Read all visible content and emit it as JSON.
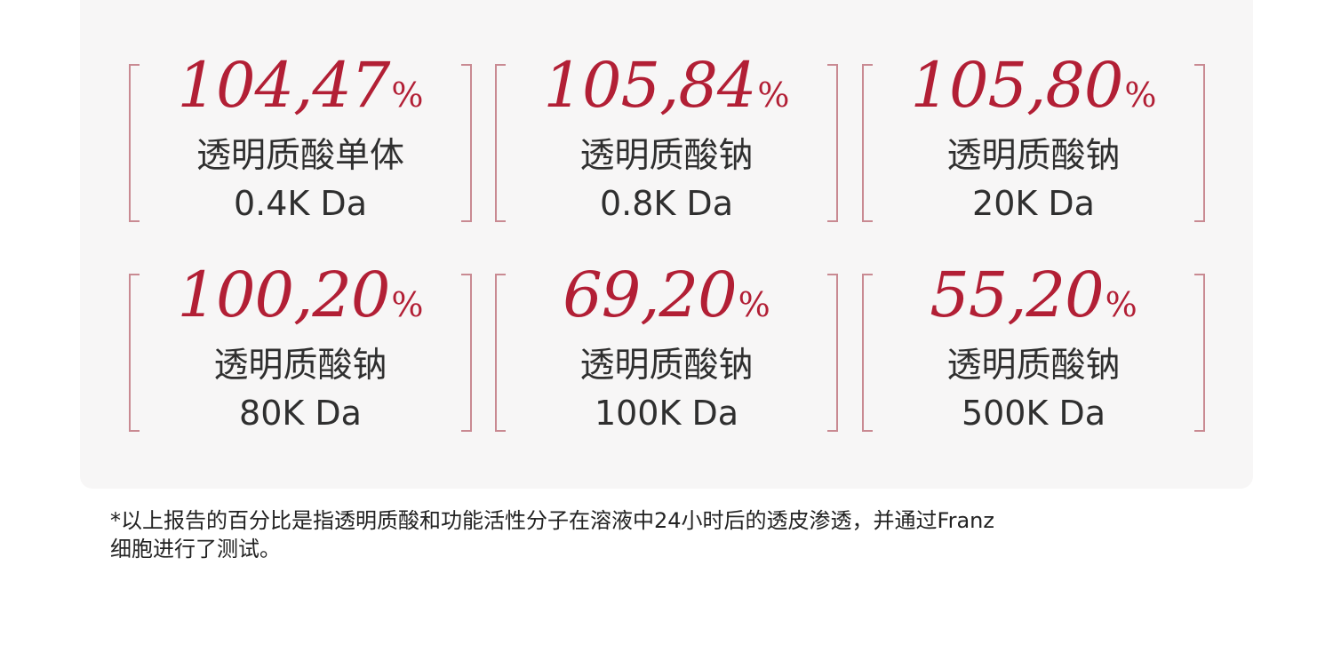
{
  "cards": [
    {
      "value": "104,47",
      "unit": "%",
      "name": "透明质酸单体",
      "weight": "0.4K Da"
    },
    {
      "value": "105,84",
      "unit": "%",
      "name": "透明质酸钠",
      "weight": "0.8K Da"
    },
    {
      "value": "105,80",
      "unit": "%",
      "name": "透明质酸钠",
      "weight": "20K Da"
    },
    {
      "value": "100,20",
      "unit": "%",
      "name": "透明质酸钠",
      "weight": "80K Da"
    },
    {
      "value": "69,20",
      "unit": "%",
      "name": "透明质酸钠",
      "weight": "100K Da"
    },
    {
      "value": "55,20",
      "unit": "%",
      "name": "透明质酸钠",
      "weight": "500K Da"
    }
  ],
  "footnote": {
    "line1": "*以上报告的百分比是指透明质酸和功能活性分子在溶液中24小时后的透皮渗透，并通过Franz",
    "line2": "细胞进行了测试。"
  },
  "colors": {
    "accent": "#b21f35",
    "bracket": "#c98a92",
    "panel": "#f7f6f6",
    "text": "#2f2f2f"
  }
}
